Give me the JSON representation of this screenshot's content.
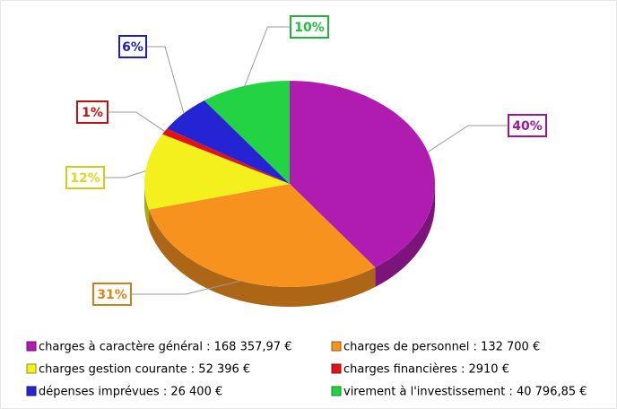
{
  "chart_data": {
    "type": "pie",
    "categories": [
      "charges à caractère général : 168 357,97 €",
      "charges de personnel : 132 700 €",
      "charges gestion courante : 52 396 €",
      "charges financières : 2910 €",
      "dépenses imprévues : 26 400 €",
      "virement à l'investissement : 40 796,85 €"
    ],
    "values": [
      40,
      31,
      12,
      1,
      6,
      10
    ],
    "value_labels": [
      "40%",
      "31%",
      "12%",
      "1%",
      "6%",
      "10%"
    ],
    "colors": [
      "#b01cb0",
      "#f7921e",
      "#f4f01e",
      "#e01414",
      "#2424d4",
      "#22d444"
    ]
  }
}
